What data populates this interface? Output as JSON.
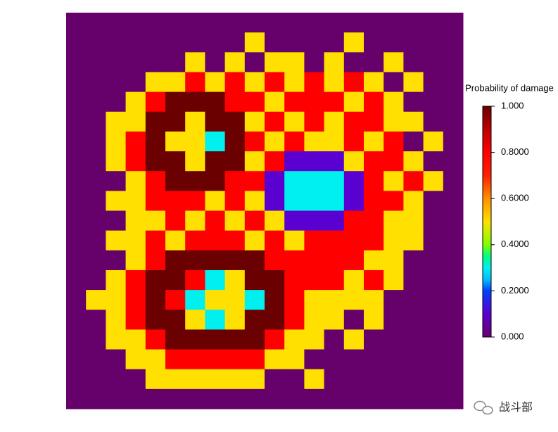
{
  "chart_data": {
    "type": "heatmap",
    "colorbar_title": "Probability of damage",
    "clim": [
      0,
      1
    ],
    "cticks": [
      {
        "value": 0,
        "label": "0.000"
      },
      {
        "value": 0.2,
        "label": "0.2000"
      },
      {
        "value": 0.4,
        "label": "0.4000"
      },
      {
        "value": 0.6,
        "label": "0.6000"
      },
      {
        "value": 0.8,
        "label": "0.8000"
      },
      {
        "value": 1,
        "label": "1.000"
      }
    ],
    "colorscale": [
      [
        0,
        "#66006a"
      ],
      [
        0.1,
        "#5a00d0"
      ],
      [
        0.2,
        "#0040ff"
      ],
      [
        0.25,
        "#00c0ff"
      ],
      [
        0.3,
        "#00f0f0"
      ],
      [
        0.35,
        "#00ff80"
      ],
      [
        0.4,
        "#80ff00"
      ],
      [
        0.5,
        "#ffe000"
      ],
      [
        0.6,
        "#ff9000"
      ],
      [
        0.7,
        "#ff2000"
      ],
      [
        0.8,
        "#ff0000"
      ],
      [
        0.9,
        "#c00000"
      ],
      [
        1,
        "#6a0000"
      ]
    ],
    "z": [
      [
        0,
        0,
        0,
        0,
        0,
        0,
        0,
        0,
        0,
        0,
        0,
        0,
        0,
        0,
        0,
        0,
        0,
        0,
        0,
        0
      ],
      [
        0,
        0,
        0,
        0,
        0,
        0,
        0,
        0,
        0,
        0.5,
        0,
        0,
        0,
        0,
        0.5,
        0,
        0,
        0,
        0,
        0
      ],
      [
        0,
        0,
        0,
        0,
        0,
        0,
        0.5,
        0,
        0.5,
        0,
        0.5,
        0.5,
        0,
        0.5,
        0,
        0,
        0.5,
        0,
        0,
        0
      ],
      [
        0,
        0,
        0,
        0,
        0.5,
        0.5,
        0.8,
        0.5,
        0.8,
        0.5,
        0.8,
        0.5,
        0.8,
        0.5,
        0.8,
        0.5,
        0,
        0.5,
        0,
        0
      ],
      [
        0,
        0,
        0,
        0.5,
        0.8,
        1,
        1,
        1,
        0.8,
        0.8,
        0.5,
        0.8,
        0.8,
        0.8,
        0.5,
        0.8,
        0.5,
        0,
        0,
        0
      ],
      [
        0,
        0,
        0.5,
        0.5,
        1,
        1,
        0.5,
        1,
        1,
        0.5,
        0.8,
        0.5,
        0.8,
        0.5,
        0.8,
        0.8,
        0.5,
        0.5,
        0,
        0
      ],
      [
        0,
        0,
        0.5,
        0.8,
        1,
        0.5,
        0.5,
        0.3,
        1,
        0.8,
        0.5,
        0.8,
        0.5,
        0.5,
        0.8,
        0.5,
        0.8,
        0,
        0.5,
        0
      ],
      [
        0,
        0,
        0.5,
        0.8,
        1,
        1,
        0.5,
        1,
        1,
        0.5,
        0.8,
        0.1,
        0.1,
        0.1,
        0.5,
        0.8,
        0.8,
        0.5,
        0,
        0
      ],
      [
        0,
        0,
        0,
        0.5,
        0.8,
        1,
        1,
        1,
        0.8,
        0.8,
        0.1,
        0.3,
        0.3,
        0.3,
        0.1,
        0.8,
        0.5,
        0.8,
        0.5,
        0
      ],
      [
        0,
        0,
        0.5,
        0.5,
        0.8,
        0.8,
        0.8,
        0.5,
        0.8,
        0.5,
        0.1,
        0.3,
        0.3,
        0.3,
        0.1,
        0.8,
        0.8,
        0.5,
        0,
        0
      ],
      [
        0,
        0,
        0,
        0.5,
        0.5,
        0.8,
        0.5,
        0.8,
        0.5,
        0.8,
        0.5,
        0.1,
        0.1,
        0.1,
        0.8,
        0.8,
        0.5,
        0.5,
        0,
        0
      ],
      [
        0,
        0,
        0.5,
        0.5,
        0.8,
        0.5,
        0.8,
        0.8,
        0.8,
        0.5,
        0.8,
        0.5,
        0.8,
        0.8,
        0.8,
        0.8,
        0.5,
        0.5,
        0,
        0
      ],
      [
        0,
        0,
        0,
        0.5,
        0.8,
        1,
        1,
        1,
        1,
        1,
        0.8,
        0.8,
        0.8,
        0.8,
        0.8,
        0.5,
        0.5,
        0,
        0,
        0
      ],
      [
        0,
        0,
        0.5,
        0.8,
        1,
        1,
        0.8,
        0.3,
        0.5,
        1,
        1,
        0.8,
        0.8,
        0.8,
        0.5,
        0.8,
        0.5,
        0,
        0,
        0
      ],
      [
        0,
        0.5,
        0.5,
        0.8,
        1,
        0.8,
        0.3,
        0.5,
        0.5,
        0.3,
        1,
        0.8,
        0.5,
        0.5,
        0.5,
        0.5,
        0,
        0,
        0,
        0
      ],
      [
        0,
        0,
        0.5,
        0.8,
        1,
        1,
        0.5,
        0.3,
        0.5,
        1,
        1,
        0.8,
        0.5,
        0.5,
        0,
        0.5,
        0,
        0,
        0,
        0
      ],
      [
        0,
        0,
        0.5,
        0.5,
        0.8,
        1,
        1,
        1,
        1,
        1,
        0.8,
        0.5,
        0.5,
        0,
        0.5,
        0,
        0,
        0,
        0,
        0
      ],
      [
        0,
        0,
        0,
        0.5,
        0.5,
        0.8,
        0.8,
        0.8,
        0.8,
        0.8,
        0.5,
        0.5,
        0,
        0,
        0,
        0,
        0,
        0,
        0,
        0
      ],
      [
        0,
        0,
        0,
        0,
        0.5,
        0.5,
        0.5,
        0.5,
        0.5,
        0.5,
        0,
        0,
        0.5,
        0,
        0,
        0,
        0,
        0,
        0,
        0
      ],
      [
        0,
        0,
        0,
        0,
        0,
        0,
        0,
        0,
        0,
        0,
        0,
        0,
        0,
        0,
        0,
        0,
        0,
        0,
        0,
        0
      ]
    ]
  },
  "watermark": "战斗部"
}
